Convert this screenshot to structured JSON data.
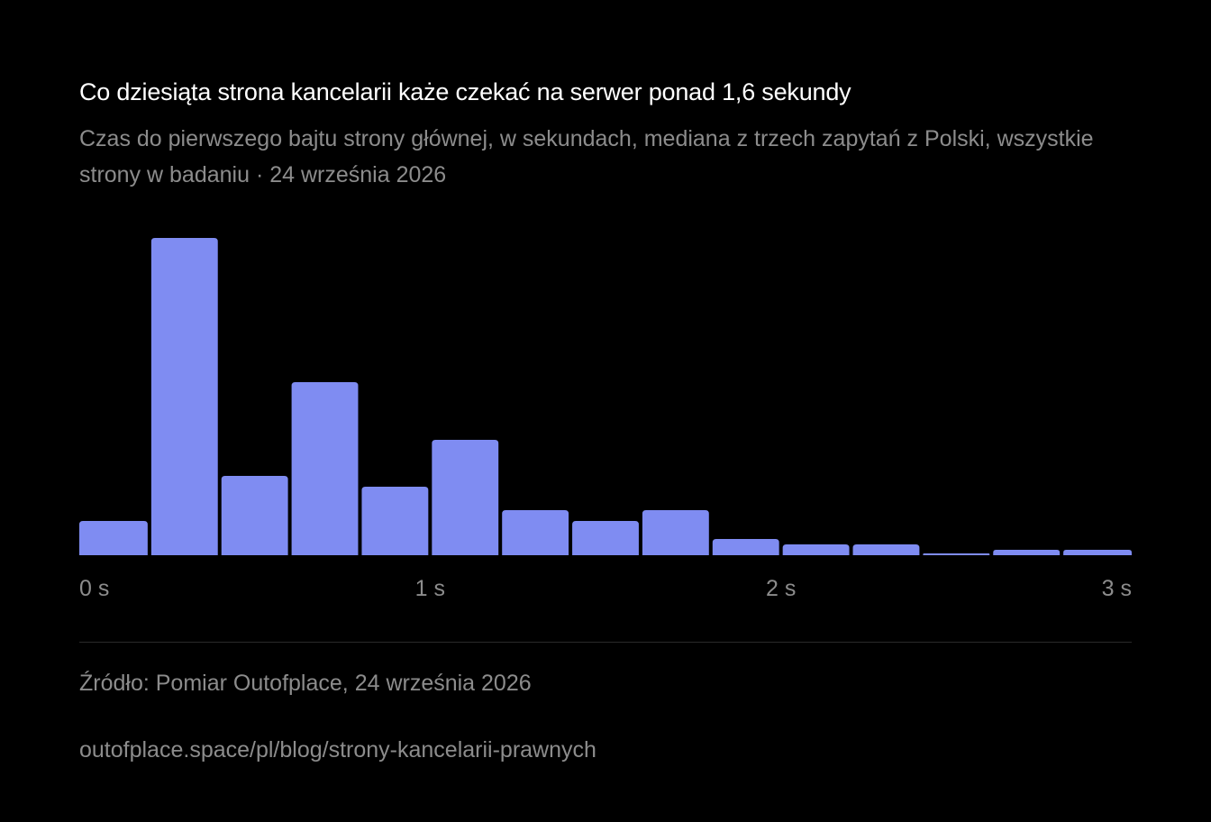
{
  "title": "Co dziesiąta strona kancelarii każe czekać na serwer ponad 1,6 sekundy",
  "subtitle": "Czas do pierwszego bajtu strony głównej, w sekundach, mediana z trzech zapytań z Polski, wszystkie strony w badaniu · 24 września 2026",
  "source": "Źródło: Pomiar Outofplace, 24 września 2026",
  "url": "outofplace.space/pl/blog/strony-kancelarii-prawnych",
  "colors": {
    "bar": "#7f8cf2",
    "background": "#000000"
  },
  "chart_data": {
    "type": "bar",
    "title": "Co dziesiąta strona kancelarii każe czekać na serwer ponad 1,6 sekundy",
    "xlabel": "",
    "ylabel": "",
    "bin_width_s": 0.2,
    "xlim": [
      0,
      3
    ],
    "x_tick_values": [
      0,
      1,
      2,
      3
    ],
    "x_tick_labels": [
      "0 s",
      "1 s",
      "2 s",
      "3 s"
    ],
    "bins": [
      [
        0.0,
        0.2
      ],
      [
        0.2,
        0.4
      ],
      [
        0.4,
        0.6
      ],
      [
        0.6,
        0.8
      ],
      [
        0.8,
        1.0
      ],
      [
        1.0,
        1.2
      ],
      [
        1.2,
        1.4
      ],
      [
        1.4,
        1.6
      ],
      [
        1.6,
        1.8
      ],
      [
        1.8,
        2.0
      ],
      [
        2.0,
        2.2
      ],
      [
        2.2,
        2.4
      ],
      [
        2.4,
        2.6
      ],
      [
        2.6,
        2.8
      ],
      [
        2.8,
        3.0
      ]
    ],
    "values": [
      19,
      176,
      44,
      96,
      38,
      64,
      25,
      19,
      25,
      9,
      6,
      6,
      1,
      3,
      3
    ],
    "ylim": [
      0,
      176
    ],
    "y_axis_visible": false,
    "grid": false,
    "legend": "none"
  }
}
